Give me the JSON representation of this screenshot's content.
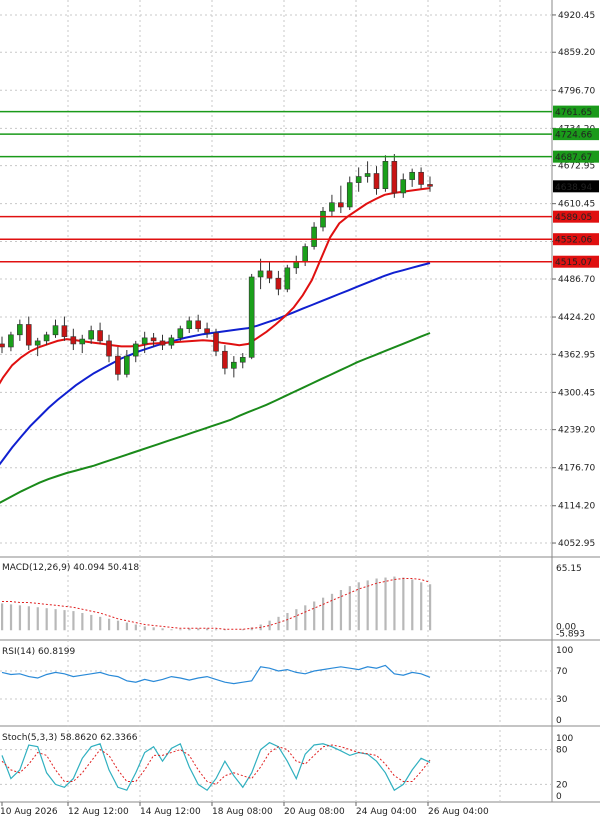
{
  "chart_data": [
    {
      "type": "candlestick",
      "panel": "price",
      "y_ticks": [
        4920.45,
        4859.2,
        4796.7,
        4734.2,
        4672.95,
        4610.45,
        4548.2,
        4486.7,
        4424.2,
        4362.95,
        4300.45,
        4239.2,
        4176.7,
        4114.2,
        4052.95
      ],
      "y_tick_labels": [
        "4920.45",
        "4859.20",
        "4796.70",
        "4734.20",
        "4672.95",
        "4610.45",
        "",
        "4486.70",
        "4424.20",
        "4362.95",
        "4300.45",
        "4239.20",
        "4176.70",
        "4114.20",
        "4052.95"
      ],
      "ylim": [
        4030,
        4945
      ],
      "current_price": {
        "value": 4638.94,
        "label": "4638.94"
      },
      "resistance_levels": [
        {
          "value": 4761.65,
          "label": "4761.65"
        },
        {
          "value": 4724.66,
          "label": "4724.66"
        },
        {
          "value": 4687.67,
          "label": "4687.67"
        }
      ],
      "support_levels": [
        {
          "value": 4589.05,
          "label": "4589.05"
        },
        {
          "value": 4552.06,
          "label": "4552.06"
        },
        {
          "value": 4515.07,
          "label": "4515.07"
        }
      ],
      "candles": [
        [
          4380,
          4392,
          4365,
          4375
        ],
        [
          4375,
          4400,
          4368,
          4395
        ],
        [
          4395,
          4420,
          4385,
          4412
        ],
        [
          4412,
          4425,
          4370,
          4378
        ],
        [
          4378,
          4390,
          4360,
          4385
        ],
        [
          4385,
          4400,
          4378,
          4395
        ],
        [
          4395,
          4420,
          4390,
          4410
        ],
        [
          4410,
          4425,
          4385,
          4392
        ],
        [
          4392,
          4405,
          4370,
          4380
        ],
        [
          4380,
          4395,
          4365,
          4388
        ],
        [
          4388,
          4410,
          4380,
          4402
        ],
        [
          4402,
          4415,
          4380,
          4385
        ],
        [
          4385,
          4395,
          4350,
          4360
        ],
        [
          4360,
          4375,
          4320,
          4330
        ],
        [
          4330,
          4370,
          4325,
          4360
        ],
        [
          4360,
          4385,
          4350,
          4380
        ],
        [
          4380,
          4400,
          4365,
          4390
        ],
        [
          4390,
          4398,
          4375,
          4385
        ],
        [
          4385,
          4395,
          4370,
          4378
        ],
        [
          4378,
          4395,
          4372,
          4390
        ],
        [
          4390,
          4410,
          4385,
          4405
        ],
        [
          4405,
          4425,
          4398,
          4418
        ],
        [
          4418,
          4428,
          4400,
          4405
        ],
        [
          4405,
          4415,
          4390,
          4398
        ],
        [
          4398,
          4405,
          4360,
          4368
        ],
        [
          4368,
          4378,
          4330,
          4340
        ],
        [
          4340,
          4360,
          4325,
          4350
        ],
        [
          4350,
          4365,
          4340,
          4358
        ],
        [
          4358,
          4495,
          4355,
          4490
        ],
        [
          4490,
          4520,
          4470,
          4500
        ],
        [
          4500,
          4515,
          4480,
          4488
        ],
        [
          4488,
          4500,
          4460,
          4470
        ],
        [
          4470,
          4510,
          4465,
          4505
        ],
        [
          4505,
          4525,
          4495,
          4515
        ],
        [
          4515,
          4545,
          4508,
          4540
        ],
        [
          4540,
          4580,
          4535,
          4572
        ],
        [
          4572,
          4605,
          4565,
          4598
        ],
        [
          4598,
          4625,
          4590,
          4612
        ],
        [
          4612,
          4640,
          4595,
          4605
        ],
        [
          4605,
          4655,
          4600,
          4645
        ],
        [
          4645,
          4670,
          4630,
          4655
        ],
        [
          4655,
          4680,
          4645,
          4660
        ],
        [
          4660,
          4672,
          4625,
          4635
        ],
        [
          4635,
          4690,
          4630,
          4680
        ],
        [
          4680,
          4692,
          4620,
          4628
        ],
        [
          4628,
          4660,
          4620,
          4650
        ],
        [
          4650,
          4668,
          4638,
          4662
        ],
        [
          4662,
          4670,
          4635,
          4642
        ],
        [
          4642,
          4655,
          4630,
          4639
        ]
      ],
      "ma_red": [
        4300,
        4325,
        4345,
        4358,
        4368,
        4375,
        4380,
        4385,
        4388,
        4386,
        4384,
        4382,
        4380,
        4378,
        4376,
        4376,
        4377,
        4380,
        4381,
        4382,
        4383,
        4384,
        4385,
        4386,
        4385,
        4382,
        4380,
        4378,
        4380,
        4390,
        4400,
        4412,
        4425,
        4440,
        4460,
        4485,
        4520,
        4555,
        4578,
        4590,
        4600,
        4610,
        4618,
        4625,
        4628,
        4630,
        4632,
        4634,
        4636
      ],
      "ma_blue": [
        4170,
        4190,
        4210,
        4228,
        4245,
        4260,
        4275,
        4288,
        4300,
        4312,
        4322,
        4332,
        4340,
        4348,
        4356,
        4362,
        4368,
        4373,
        4378,
        4382,
        4386,
        4390,
        4393,
        4396,
        4398,
        4400,
        4402,
        4404,
        4406,
        4410,
        4415,
        4420,
        4426,
        4432,
        4438,
        4444,
        4450,
        4456,
        4462,
        4468,
        4474,
        4480,
        4486,
        4492,
        4497,
        4501,
        4505,
        4509,
        4513
      ],
      "ma_green": [
        4114,
        4122,
        4130,
        4138,
        4145,
        4152,
        4158,
        4163,
        4168,
        4172,
        4176,
        4180,
        4185,
        4190,
        4195,
        4200,
        4205,
        4210,
        4215,
        4220,
        4225,
        4230,
        4235,
        4240,
        4245,
        4250,
        4255,
        4262,
        4268,
        4274,
        4280,
        4287,
        4294,
        4301,
        4308,
        4315,
        4322,
        4329,
        4336,
        4343,
        4350,
        4356,
        4362,
        4368,
        4374,
        4380,
        4386,
        4392,
        4398
      ]
    },
    {
      "type": "bar",
      "panel": "macd",
      "label": "MACD(12,26,9) 40.094 50.418",
      "y_ticks_labels": [
        "65.15",
        "0.00",
        "-5.893"
      ],
      "ylim": [
        -6,
        66
      ],
      "histogram": [
        28,
        27,
        26,
        25,
        24,
        23,
        22,
        21,
        20,
        18,
        16,
        14,
        12,
        10,
        8,
        6,
        4,
        3,
        2,
        1,
        1,
        2,
        2,
        2,
        1,
        1,
        0,
        1,
        3,
        6,
        10,
        14,
        18,
        22,
        26,
        30,
        34,
        38,
        42,
        46,
        50,
        52,
        54,
        55,
        56,
        55,
        53,
        50,
        48
      ],
      "signal": [
        30,
        30,
        29,
        29,
        28,
        27,
        26,
        25,
        24,
        22,
        20,
        18,
        15,
        12,
        10,
        8,
        6,
        5,
        4,
        3,
        2,
        2,
        2,
        2,
        2,
        1,
        1,
        1,
        2,
        3,
        5,
        8,
        11,
        15,
        19,
        23,
        27,
        31,
        35,
        39,
        43,
        46,
        49,
        51,
        53,
        54,
        54,
        53,
        50
      ]
    },
    {
      "type": "line",
      "panel": "rsi",
      "label": "RSI(14) 60.8199",
      "y_ticks_labels": [
        "100",
        "70",
        "30",
        "0"
      ],
      "ylim": [
        0,
        100
      ],
      "values": [
        68,
        65,
        66,
        62,
        60,
        65,
        68,
        66,
        62,
        64,
        66,
        68,
        64,
        62,
        56,
        54,
        58,
        55,
        58,
        62,
        60,
        57,
        60,
        62,
        58,
        54,
        52,
        54,
        56,
        76,
        74,
        70,
        72,
        68,
        66,
        70,
        72,
        74,
        76,
        74,
        72,
        76,
        74,
        78,
        66,
        64,
        68,
        66,
        61
      ]
    },
    {
      "type": "line",
      "panel": "stochastic",
      "label": "Stoch(5,3,3) 58.8620 62.3366",
      "y_ticks_labels": [
        "100",
        "80",
        "20",
        "0"
      ],
      "ylim": [
        0,
        100
      ],
      "k": [
        70,
        30,
        45,
        88,
        85,
        40,
        20,
        15,
        30,
        65,
        85,
        90,
        45,
        15,
        10,
        40,
        75,
        85,
        60,
        82,
        90,
        50,
        20,
        10,
        30,
        60,
        35,
        15,
        40,
        80,
        92,
        85,
        60,
        30,
        72,
        88,
        90,
        85,
        78,
        70,
        75,
        72,
        60,
        40,
        10,
        20,
        45,
        65,
        58
      ],
      "d": [
        60,
        45,
        40,
        55,
        75,
        70,
        45,
        25,
        25,
        40,
        60,
        80,
        70,
        45,
        25,
        25,
        45,
        70,
        70,
        75,
        80,
        70,
        45,
        25,
        20,
        35,
        40,
        35,
        30,
        50,
        75,
        85,
        80,
        60,
        55,
        70,
        85,
        88,
        85,
        80,
        75,
        73,
        70,
        55,
        35,
        25,
        25,
        42,
        62
      ]
    }
  ],
  "x_axis": {
    "labels": [
      "10 Aug 2026",
      "12 Aug 12:00",
      "14 Aug 12:00",
      "18 Aug 08:00",
      "20 Aug 08:00",
      "24 Aug 04:00",
      "26 Aug 04:00"
    ]
  },
  "colors": {
    "bull": "#1aa01a",
    "bear": "#c81414",
    "resistance_line": "#1a9a1a",
    "support_line": "#e01010",
    "ma_red": "#e01010",
    "ma_blue": "#1020d0",
    "ma_green": "#1a8a1a",
    "macd_hist": "#b8b8b8",
    "macd_signal": "#e02020",
    "rsi_line": "#2a8ad8",
    "stoch_k": "#30b0c0",
    "stoch_d": "#e02020",
    "current_price_bg": "#000000"
  }
}
